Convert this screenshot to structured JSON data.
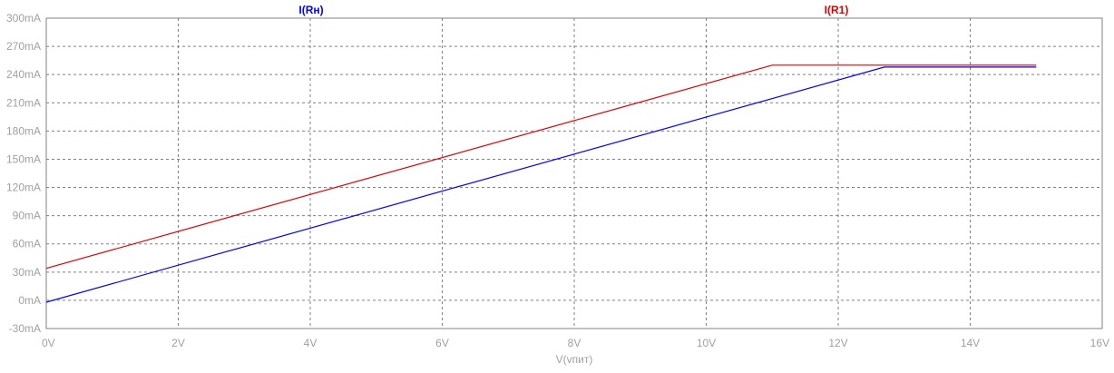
{
  "chart_data": {
    "type": "line",
    "xlabel": "V(vпит)",
    "ylabel": "",
    "xlim": [
      0,
      16
    ],
    "ylim": [
      -30,
      300
    ],
    "x_ticks": [
      0,
      2,
      4,
      6,
      8,
      10,
      12,
      14,
      16
    ],
    "x_tick_labels": [
      "0V",
      "2V",
      "4V",
      "6V",
      "8V",
      "10V",
      "12V",
      "14V",
      "16V"
    ],
    "y_ticks": [
      -30,
      0,
      30,
      60,
      90,
      120,
      150,
      180,
      210,
      240,
      270,
      300
    ],
    "y_tick_labels": [
      "-30mA",
      "0mA",
      "30mA",
      "60mA",
      "90mA",
      "120mA",
      "150mA",
      "180mA",
      "210mA",
      "240mA",
      "270mA",
      "300mA"
    ],
    "grid": true,
    "series": [
      {
        "name": "I(Rн)",
        "color": "#0000ff",
        "x": [
          0,
          12.7,
          15
        ],
        "y": [
          -2,
          248,
          248
        ]
      },
      {
        "name": "I(R1)",
        "color": "#e00000",
        "x": [
          0,
          11,
          15
        ],
        "y": [
          34,
          250,
          250
        ]
      }
    ]
  }
}
